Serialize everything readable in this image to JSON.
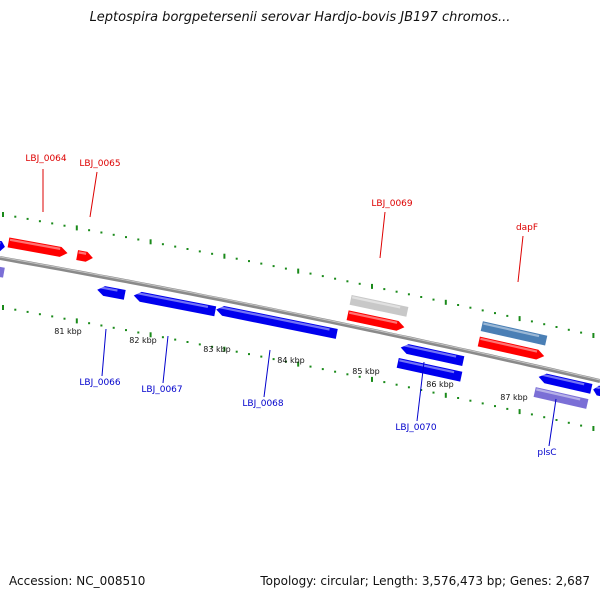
{
  "title": "Leptospira borgpetersenii serovar Hardjo-bovis JB197 chromos...",
  "footer": {
    "accession": "Accession: NC_008510",
    "stats": "Topology: circular; Length: 3,576,473 bp; Genes: 2,687"
  },
  "colors": {
    "forward_gene": "#ff0000",
    "reverse_gene": "#0000ee",
    "grey_gene": "#c8c8c8",
    "steelblue_gene": "#4a7fb5",
    "purple_gene": "#7b6fd6",
    "tick": "#1a8a1a",
    "backbone": "#808080"
  },
  "scale_labels": [
    "81 kbp",
    "82 kbp",
    "83 kbp",
    "84 kbp",
    "85 kbp",
    "86 kbp",
    "87 kbp"
  ],
  "genes_top": [
    {
      "label": "LBJ_0064",
      "color": "forward_gene"
    },
    {
      "label": "LBJ_0065",
      "color": "forward_gene"
    },
    {
      "label": "LBJ_0069",
      "color": "forward_gene"
    },
    {
      "label": "dapF",
      "color": "forward_gene"
    }
  ],
  "genes_bottom": [
    {
      "label": "LBJ_0066",
      "color": "reverse_gene"
    },
    {
      "label": "LBJ_0067",
      "color": "reverse_gene"
    },
    {
      "label": "LBJ_0068",
      "color": "reverse_gene"
    },
    {
      "label": "LBJ_0070",
      "color": "reverse_gene"
    },
    {
      "label": "plsC",
      "color": "reverse_gene"
    }
  ]
}
